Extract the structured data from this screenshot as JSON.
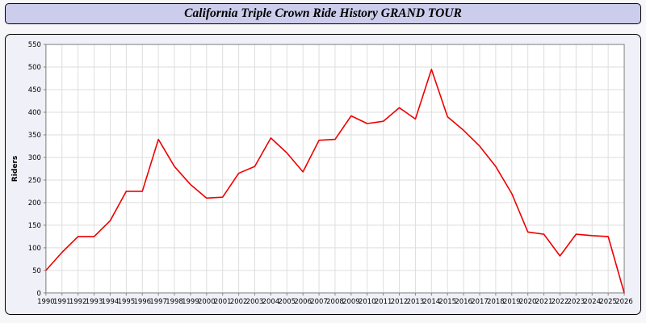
{
  "title": "California Triple Crown Ride History GRAND TOUR",
  "chart_data": {
    "type": "line",
    "title": "California Triple Crown Ride History GRAND TOUR",
    "xlabel": "",
    "ylabel": "Riders",
    "ylim": [
      0,
      550
    ],
    "ytick": 50,
    "grid": true,
    "legend": "none",
    "categories": [
      "1990",
      "1991",
      "1992",
      "1993",
      "1994",
      "1995",
      "1996",
      "1997",
      "1998",
      "1999",
      "2000",
      "2001",
      "2002",
      "2003",
      "2004",
      "2005",
      "2006",
      "2007",
      "2008",
      "2009",
      "2010",
      "2011",
      "2012",
      "2013",
      "2014",
      "2015",
      "2016",
      "2017",
      "2018",
      "2019",
      "2020",
      "2021",
      "2022",
      "2023",
      "2024",
      "2025",
      "2026"
    ],
    "values": [
      50,
      90,
      125,
      125,
      160,
      225,
      225,
      340,
      280,
      240,
      210,
      212,
      265,
      280,
      343,
      310,
      268,
      338,
      340,
      392,
      375,
      380,
      410,
      385,
      495,
      390,
      360,
      325,
      280,
      220,
      135,
      130,
      82,
      130,
      127,
      125,
      0
    ]
  },
  "colors": {
    "title_bar_bg": "#ccccec",
    "chart_bg": "#f0f0f8",
    "plot_bg": "#ffffff",
    "grid": "#dedede",
    "line": "#ee0000",
    "border": "#000000",
    "axis": "#808080"
  }
}
